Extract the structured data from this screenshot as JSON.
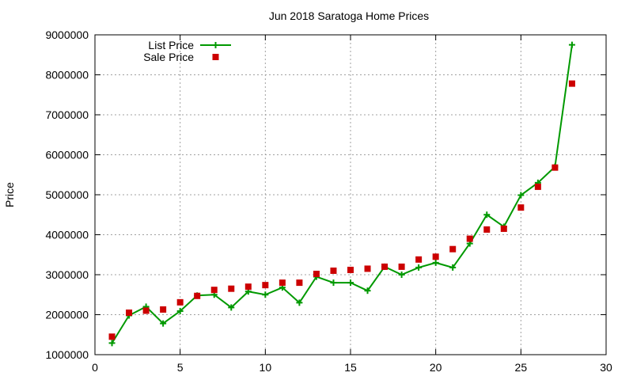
{
  "chart_data": {
    "type": "line",
    "title": "Jun 2018 Saratoga Home Prices",
    "xlabel": "",
    "ylabel": "Price",
    "xlim": [
      0,
      30
    ],
    "ylim": [
      1000000,
      9000000
    ],
    "x_ticks": [
      0,
      5,
      10,
      15,
      20,
      25,
      30
    ],
    "y_ticks": [
      1000000,
      2000000,
      3000000,
      4000000,
      5000000,
      6000000,
      7000000,
      8000000,
      9000000
    ],
    "grid": true,
    "legend_position": "top-left",
    "series": [
      {
        "name": "List Price",
        "type": "line",
        "marker": "plus",
        "color": "#009900",
        "x": [
          1,
          2,
          3,
          4,
          5,
          6,
          7,
          8,
          9,
          10,
          11,
          12,
          13,
          14,
          15,
          16,
          17,
          18,
          19,
          20,
          21,
          22,
          23,
          24,
          25,
          26,
          27,
          28
        ],
        "y": [
          1290000,
          1980000,
          2200000,
          1780000,
          2090000,
          2480000,
          2500000,
          2180000,
          2580000,
          2500000,
          2680000,
          2300000,
          2950000,
          2800000,
          2800000,
          2600000,
          3200000,
          3000000,
          3180000,
          3300000,
          3180000,
          3780000,
          4500000,
          4200000,
          4990000,
          5300000,
          5700000,
          8750000
        ]
      },
      {
        "name": "Sale Price",
        "type": "scatter",
        "marker": "square",
        "color": "#cc0000",
        "x": [
          1,
          2,
          3,
          4,
          5,
          6,
          7,
          8,
          9,
          10,
          11,
          12,
          13,
          14,
          15,
          16,
          17,
          18,
          19,
          20,
          21,
          22,
          23,
          24,
          25,
          26,
          27,
          28
        ],
        "y": [
          1450000,
          2050000,
          2100000,
          2130000,
          2310000,
          2470000,
          2620000,
          2650000,
          2700000,
          2740000,
          2800000,
          2800000,
          3020000,
          3100000,
          3120000,
          3150000,
          3200000,
          3200000,
          3380000,
          3450000,
          3640000,
          3900000,
          4130000,
          4150000,
          4680000,
          5200000,
          5680000,
          7780000
        ]
      }
    ]
  }
}
